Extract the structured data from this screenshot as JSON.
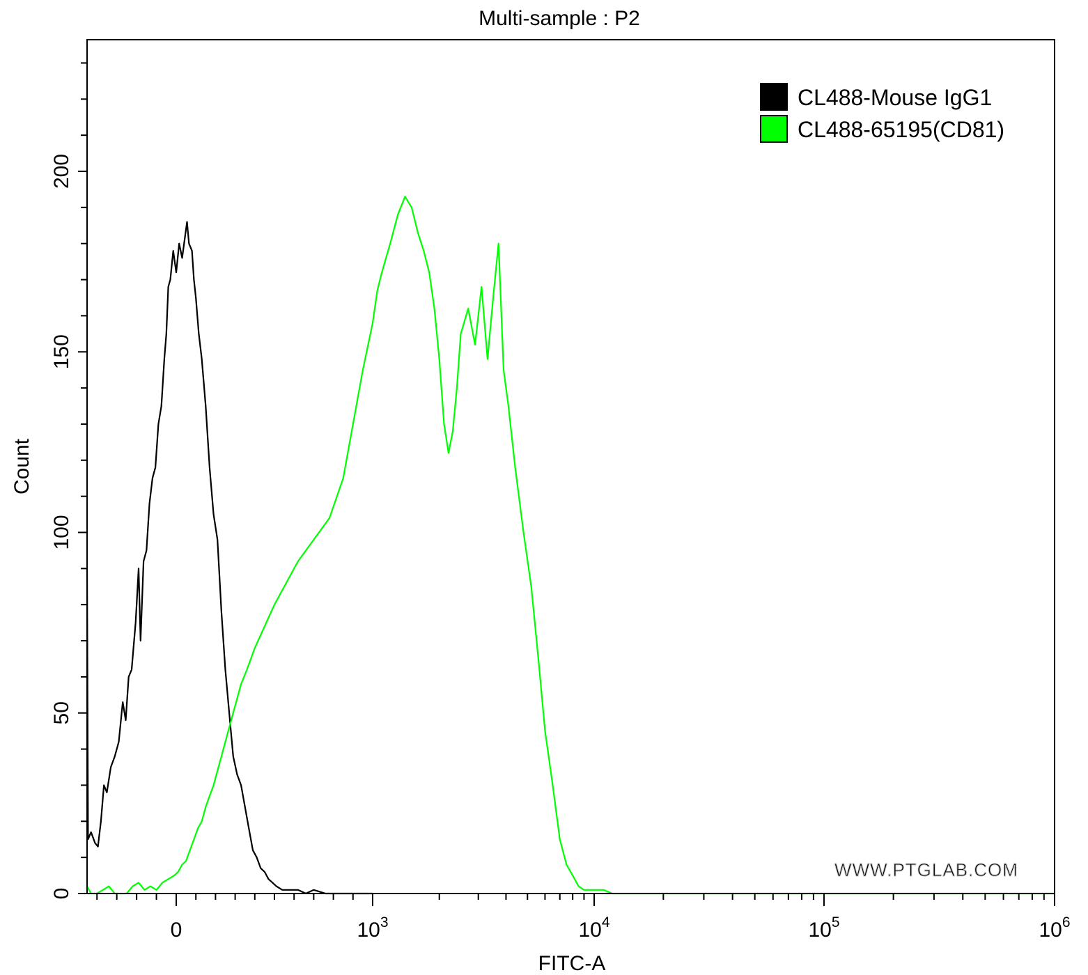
{
  "chart_data": {
    "type": "line",
    "title": "Multi-sample : P2",
    "xlabel": "FITC-A",
    "ylabel": "Count",
    "x_scale": "biexponential",
    "xlim": [
      -450,
      1000000
    ],
    "ylim": [
      0,
      200
    ],
    "y_ticks": [
      0,
      50,
      100,
      150,
      200
    ],
    "x_ticks": [
      {
        "value": 0,
        "label": "0"
      },
      {
        "value": 1000,
        "base": "10",
        "exp": "3"
      },
      {
        "value": 10000,
        "base": "10",
        "exp": "4"
      },
      {
        "value": 100000,
        "base": "10",
        "exp": "5"
      },
      {
        "value": 1000000,
        "base": "10",
        "exp": "6"
      }
    ],
    "legend_position": "top-right",
    "watermark": "WWW.PTGLAB.COM",
    "series": [
      {
        "name": "CL488-Mouse IgG1",
        "color": "#000000",
        "points": [
          [
            -450,
            90
          ],
          [
            -445,
            15
          ],
          [
            -430,
            17
          ],
          [
            -410,
            14
          ],
          [
            -395,
            13
          ],
          [
            -380,
            20
          ],
          [
            -365,
            30
          ],
          [
            -350,
            28
          ],
          [
            -330,
            35
          ],
          [
            -310,
            38
          ],
          [
            -290,
            42
          ],
          [
            -270,
            53
          ],
          [
            -255,
            48
          ],
          [
            -240,
            60
          ],
          [
            -225,
            62
          ],
          [
            -205,
            75
          ],
          [
            -190,
            90
          ],
          [
            -180,
            70
          ],
          [
            -165,
            92
          ],
          [
            -150,
            95
          ],
          [
            -135,
            108
          ],
          [
            -120,
            115
          ],
          [
            -105,
            118
          ],
          [
            -90,
            130
          ],
          [
            -75,
            135
          ],
          [
            -60,
            148
          ],
          [
            -50,
            155
          ],
          [
            -40,
            168
          ],
          [
            -30,
            170
          ],
          [
            -15,
            178
          ],
          [
            0,
            172
          ],
          [
            15,
            180
          ],
          [
            30,
            176
          ],
          [
            45,
            182
          ],
          [
            55,
            186
          ],
          [
            65,
            180
          ],
          [
            80,
            178
          ],
          [
            90,
            170
          ],
          [
            100,
            165
          ],
          [
            115,
            155
          ],
          [
            130,
            148
          ],
          [
            150,
            135
          ],
          [
            170,
            118
          ],
          [
            190,
            105
          ],
          [
            210,
            98
          ],
          [
            230,
            78
          ],
          [
            250,
            62
          ],
          [
            270,
            50
          ],
          [
            290,
            38
          ],
          [
            310,
            33
          ],
          [
            330,
            30
          ],
          [
            350,
            24
          ],
          [
            370,
            18
          ],
          [
            390,
            12
          ],
          [
            410,
            10
          ],
          [
            430,
            7
          ],
          [
            450,
            6
          ],
          [
            470,
            4
          ],
          [
            490,
            3
          ],
          [
            510,
            2
          ],
          [
            540,
            1
          ],
          [
            580,
            1
          ],
          [
            620,
            1
          ],
          [
            660,
            0
          ],
          [
            700,
            1
          ],
          [
            760,
            0
          ],
          [
            820,
            0
          ],
          [
            900,
            0
          ],
          [
            1000,
            0
          ]
        ]
      },
      {
        "name": "CL488-65195(CD81)",
        "color": "#00ff00",
        "points": [
          [
            -450,
            2
          ],
          [
            -430,
            0
          ],
          [
            -400,
            0
          ],
          [
            -370,
            1
          ],
          [
            -340,
            2
          ],
          [
            -310,
            0
          ],
          [
            -280,
            0
          ],
          [
            -250,
            0
          ],
          [
            -220,
            2
          ],
          [
            -190,
            3
          ],
          [
            -160,
            1
          ],
          [
            -130,
            2
          ],
          [
            -100,
            1
          ],
          [
            -70,
            3
          ],
          [
            -40,
            4
          ],
          [
            -10,
            5
          ],
          [
            10,
            6
          ],
          [
            30,
            8
          ],
          [
            50,
            9
          ],
          [
            70,
            12
          ],
          [
            90,
            15
          ],
          [
            110,
            18
          ],
          [
            130,
            20
          ],
          [
            150,
            24
          ],
          [
            170,
            27
          ],
          [
            190,
            30
          ],
          [
            210,
            34
          ],
          [
            230,
            38
          ],
          [
            250,
            42
          ],
          [
            270,
            46
          ],
          [
            300,
            52
          ],
          [
            330,
            58
          ],
          [
            360,
            62
          ],
          [
            400,
            68
          ],
          [
            450,
            74
          ],
          [
            500,
            80
          ],
          [
            560,
            86
          ],
          [
            620,
            92
          ],
          [
            700,
            98
          ],
          [
            780,
            104
          ],
          [
            850,
            115
          ],
          [
            900,
            130
          ],
          [
            950,
            145
          ],
          [
            1000,
            158
          ],
          [
            1050,
            167
          ],
          [
            1100,
            172
          ],
          [
            1200,
            180
          ],
          [
            1300,
            188
          ],
          [
            1400,
            193
          ],
          [
            1500,
            190
          ],
          [
            1600,
            183
          ],
          [
            1700,
            178
          ],
          [
            1800,
            172
          ],
          [
            1900,
            162
          ],
          [
            2000,
            148
          ],
          [
            2100,
            130
          ],
          [
            2200,
            122
          ],
          [
            2300,
            128
          ],
          [
            2400,
            140
          ],
          [
            2500,
            155
          ],
          [
            2700,
            162
          ],
          [
            2900,
            152
          ],
          [
            3100,
            168
          ],
          [
            3300,
            148
          ],
          [
            3500,
            165
          ],
          [
            3700,
            180
          ],
          [
            3900,
            145
          ],
          [
            4100,
            135
          ],
          [
            4400,
            118
          ],
          [
            4800,
            100
          ],
          [
            5200,
            85
          ],
          [
            5600,
            65
          ],
          [
            6000,
            45
          ],
          [
            6500,
            30
          ],
          [
            7000,
            15
          ],
          [
            7500,
            8
          ],
          [
            8000,
            5
          ],
          [
            8500,
            2
          ],
          [
            9000,
            1
          ],
          [
            10000,
            1
          ],
          [
            11000,
            1
          ],
          [
            12000,
            0
          ],
          [
            16000,
            0
          ],
          [
            25000,
            0
          ],
          [
            100000,
            0
          ],
          [
            350000,
            0
          ],
          [
            1000000,
            0
          ]
        ]
      }
    ]
  }
}
